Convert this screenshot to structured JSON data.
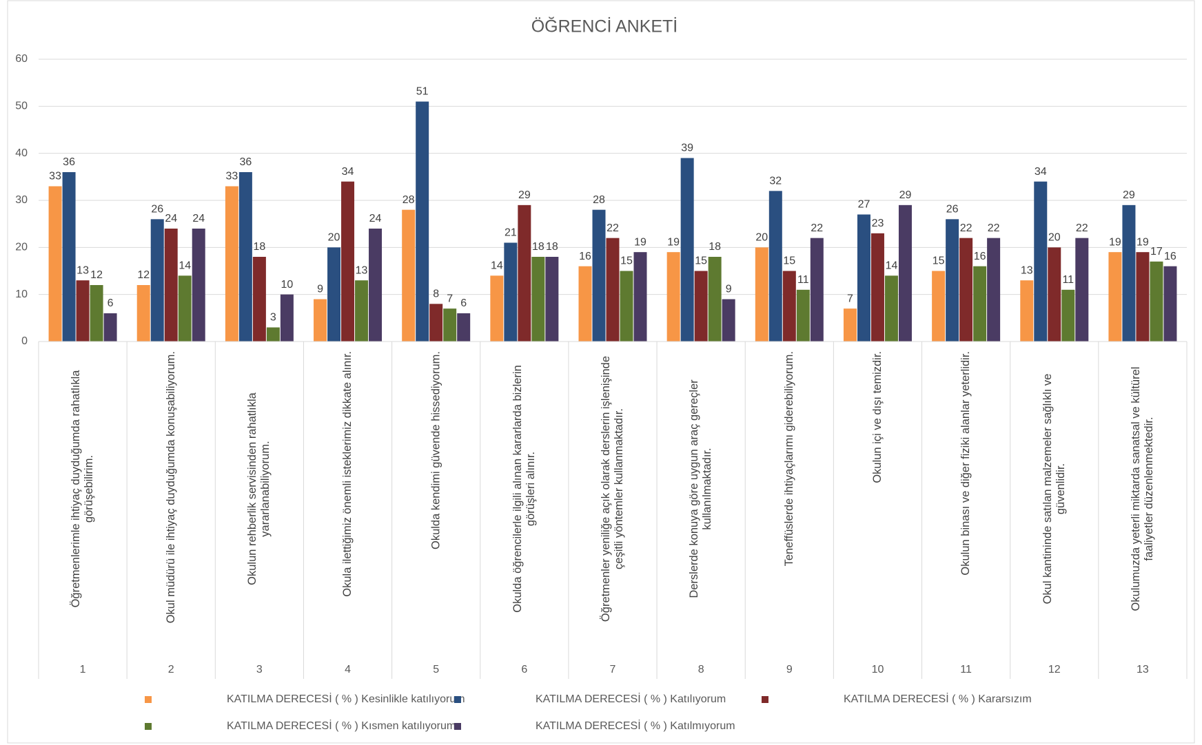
{
  "chart_data": {
    "type": "bar",
    "title": "ÖĞRENCİ ANKETİ",
    "categories": [
      "1",
      "2",
      "3",
      "4",
      "5",
      "6",
      "7",
      "8",
      "9",
      "10",
      "11",
      "12",
      "13"
    ],
    "category_labels": [
      "Öğretmenlerimle ihtiyaç duyduğumda rahatlıkla görüşebilirim.",
      "Okul müdürü ile ihtiyaç duyduğumda konuşabiliyorum.",
      "Okulun rehberlik servisinden rahatlıkla yararlanabiliyorum.",
      "Okula ilettiğimiz önemli isteklerimiz dikkate alınır.",
      "Okulda kendimi güvende hissediyorum.",
      "Okulda öğrencilerle ilgili alınan kararlarda bizlerin görüşleri alınır.",
      "Öğretmenler yeniliğe açık olarak derslerin işlenişinde çeşitli yöntemler kullanmaktadır.",
      "Derslerde konuya göre uygun araç gereçler kullanılmaktadır.",
      "Teneffüslerde ihtiyaçlarımı giderebiliyorum.",
      "Okulun içi ve dışı temizdir.",
      "Okulun binası ve diğer fiziki alanlar yeterlidir.",
      "Okul kantininde satılan malzemeler sağlıklı ve güvenlidir.",
      "Okulumuzda yeterli miktarda sanatsal ve kültürel faaliyetler düzenlenmektedir."
    ],
    "series": [
      {
        "name": "KATILMA DERECESİ  ( % ) Kesinlikle katılıyorum",
        "color": "#f79646",
        "values": [
          33,
          12,
          33,
          9,
          28,
          14,
          16,
          19,
          20,
          7,
          15,
          13,
          19
        ]
      },
      {
        "name": "KATILMA DERECESİ  ( % ) Katılıyorum",
        "color": "#2a4f80",
        "values": [
          36,
          26,
          36,
          20,
          51,
          21,
          28,
          39,
          32,
          27,
          26,
          34,
          29
        ]
      },
      {
        "name": "KATILMA DERECESİ  ( % ) Kararsızım",
        "color": "#7f2a2a",
        "values": [
          13,
          24,
          18,
          34,
          8,
          29,
          22,
          15,
          15,
          23,
          22,
          20,
          19
        ]
      },
      {
        "name": "KATILMA DERECESİ  ( % ) Kısmen katılıyorum",
        "color": "#5e7a30",
        "values": [
          12,
          14,
          3,
          13,
          7,
          18,
          15,
          18,
          11,
          14,
          16,
          11,
          17
        ]
      },
      {
        "name": "KATILMA DERECESİ  ( % ) Katılmıyorum",
        "color": "#4a3b63",
        "values": [
          6,
          24,
          10,
          24,
          6,
          18,
          19,
          9,
          22,
          29,
          22,
          22,
          16
        ]
      }
    ],
    "ylim": [
      0,
      60
    ],
    "yticks": [
      0,
      10,
      20,
      30,
      40,
      50,
      60
    ],
    "grid": true,
    "legend": "bottom"
  }
}
